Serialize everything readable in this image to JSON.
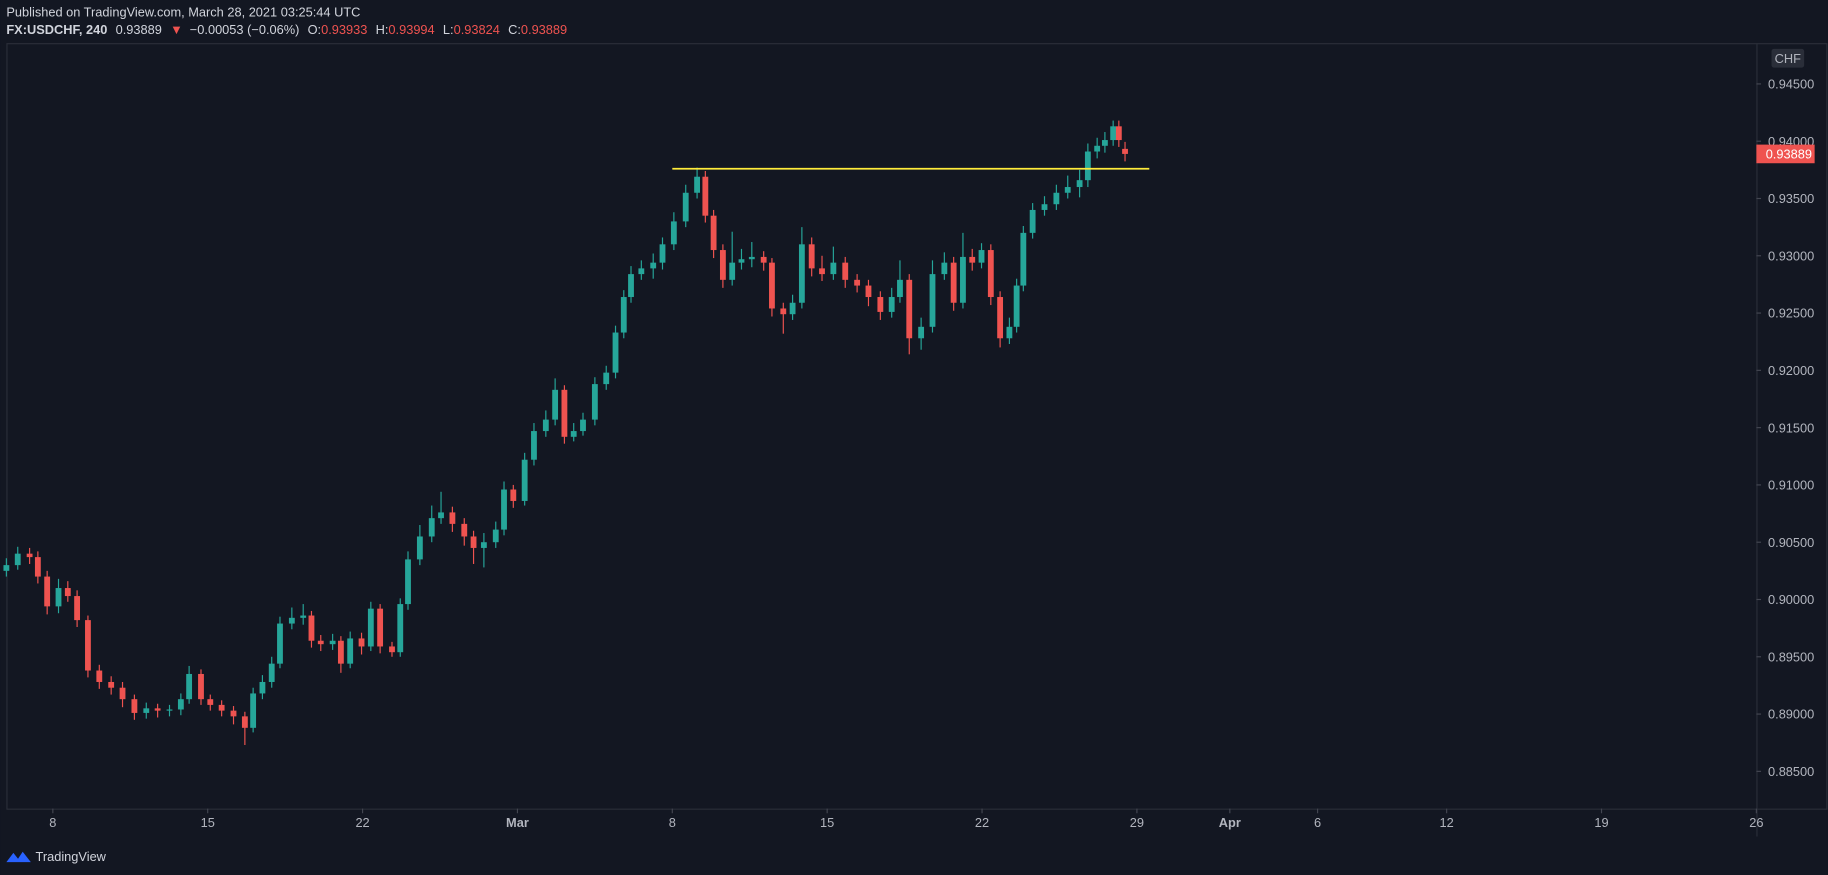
{
  "chart_data": {
    "type": "candlestick",
    "published": "Published on TradingView.com, March 28, 2021 03:25:44 UTC",
    "symbol": "FX:USDCHF, 240",
    "last": 0.93889,
    "change_arrow": "▼",
    "change": "−0.00053 (−0.06%)",
    "ohlc_labels": [
      "O:",
      "H:",
      "L:",
      "C:"
    ],
    "currency": "CHF",
    "brand": "TradingView",
    "up_color": "#26a69a",
    "down_color": "#ef5350",
    "ylim": [
      0.88175,
      0.94846
    ],
    "yticks": [
      {
        "value": 0.945,
        "label": "0.94500"
      },
      {
        "value": 0.94,
        "label": "0.94000"
      },
      {
        "value": 0.935,
        "label": "0.93500"
      },
      {
        "value": 0.93,
        "label": "0.93000"
      },
      {
        "value": 0.925,
        "label": "0.92500"
      },
      {
        "value": 0.92,
        "label": "0.92000"
      },
      {
        "value": 0.915,
        "label": "0.91500"
      },
      {
        "value": 0.91,
        "label": "0.91000"
      },
      {
        "value": 0.905,
        "label": "0.90500"
      },
      {
        "value": 0.9,
        "label": "0.90000"
      },
      {
        "value": 0.895,
        "label": "0.89500"
      },
      {
        "value": 0.89,
        "label": "0.89000"
      },
      {
        "value": 0.885,
        "label": "0.88500"
      }
    ],
    "xlim": [
      -9,
      330
    ],
    "xticks": [
      {
        "value": 0,
        "label": "8"
      },
      {
        "value": 30,
        "label": "15"
      },
      {
        "value": 60,
        "label": "22"
      },
      {
        "value": 90,
        "label": "Mar"
      },
      {
        "value": 120,
        "label": "8"
      },
      {
        "value": 150,
        "label": "15"
      },
      {
        "value": 180,
        "label": "22"
      },
      {
        "value": 210,
        "label": "29"
      },
      {
        "value": 228,
        "label": "Apr"
      },
      {
        "value": 245,
        "label": "6"
      },
      {
        "value": 270,
        "label": "12"
      },
      {
        "value": 300,
        "label": "19"
      },
      {
        "value": 330,
        "label": "26"
      }
    ],
    "hline": {
      "value": 0.9376,
      "x_start": 120,
      "x_end": 212.4,
      "color": "#ffeb3b"
    },
    "x": [
      -9.0,
      -6.8,
      -4.5,
      -2.9,
      -1.1,
      1.1,
      2.9,
      4.7,
      6.8,
      9.0,
      11.3,
      13.5,
      15.8,
      18.1,
      20.3,
      22.6,
      24.8,
      26.4,
      28.7,
      30.5,
      32.7,
      35.0,
      37.2,
      38.8,
      40.6,
      42.4,
      44.0,
      46.3,
      48.5,
      50.1,
      51.9,
      54.2,
      55.8,
      57.6,
      59.8,
      61.6,
      63.4,
      65.7,
      67.3,
      68.8,
      71.1,
      73.4,
      75.2,
      77.4,
      79.7,
      81.5,
      83.5,
      85.8,
      87.4,
      89.2,
      91.4,
      93.2,
      95.5,
      97.3,
      99.1,
      100.9,
      102.7,
      105.0,
      107.2,
      109.0,
      110.6,
      112.0,
      114.0,
      116.3,
      118.1,
      120.3,
      122.6,
      124.8,
      126.4,
      128.0,
      129.8,
      131.6,
      133.4,
      135.4,
      137.7,
      139.3,
      141.5,
      143.3,
      145.1,
      147.0,
      149.0,
      151.2,
      153.5,
      155.8,
      158.0,
      160.3,
      162.5,
      164.1,
      165.9,
      168.2,
      170.4,
      172.7,
      174.5,
      176.3,
      178.1,
      179.9,
      181.7,
      183.5,
      185.3,
      186.7,
      188.0,
      189.8,
      192.1,
      194.4,
      196.6,
      198.9,
      200.5,
      202.3,
      203.8,
      205.4,
      206.5,
      207.7
    ],
    "candles": [
      [
        0.9025,
        0.9036,
        0.902,
        0.903
      ],
      [
        0.903,
        0.9046,
        0.9026,
        0.904
      ],
      [
        0.904,
        0.9045,
        0.9031,
        0.9037
      ],
      [
        0.9037,
        0.9042,
        0.9014,
        0.902
      ],
      [
        0.902,
        0.9025,
        0.8987,
        0.8994
      ],
      [
        0.8994,
        0.9018,
        0.8988,
        0.901
      ],
      [
        0.901,
        0.9016,
        0.8998,
        0.9003
      ],
      [
        0.9003,
        0.9008,
        0.8976,
        0.8982
      ],
      [
        0.8982,
        0.8986,
        0.8932,
        0.8938
      ],
      [
        0.8938,
        0.8943,
        0.8922,
        0.8928
      ],
      [
        0.8928,
        0.8933,
        0.8917,
        0.8923
      ],
      [
        0.8923,
        0.8928,
        0.8906,
        0.8913
      ],
      [
        0.8913,
        0.8917,
        0.8895,
        0.8901
      ],
      [
        0.8901,
        0.891,
        0.8896,
        0.8905
      ],
      [
        0.8905,
        0.8909,
        0.8897,
        0.8903
      ],
      [
        0.8903,
        0.8908,
        0.8898,
        0.8904
      ],
      [
        0.8904,
        0.8918,
        0.8899,
        0.8913
      ],
      [
        0.8913,
        0.8942,
        0.8909,
        0.8935
      ],
      [
        0.8935,
        0.8939,
        0.8908,
        0.8913
      ],
      [
        0.8913,
        0.8917,
        0.8903,
        0.8908
      ],
      [
        0.8908,
        0.8912,
        0.8898,
        0.8903
      ],
      [
        0.8903,
        0.8907,
        0.8891,
        0.8898
      ],
      [
        0.8898,
        0.8902,
        0.8873,
        0.8888
      ],
      [
        0.8888,
        0.8923,
        0.8884,
        0.8918
      ],
      [
        0.8918,
        0.8934,
        0.8913,
        0.8928
      ],
      [
        0.8928,
        0.895,
        0.8923,
        0.8944
      ],
      [
        0.8944,
        0.8985,
        0.894,
        0.8979
      ],
      [
        0.8979,
        0.8993,
        0.8974,
        0.8984
      ],
      [
        0.8984,
        0.8996,
        0.8978,
        0.8986
      ],
      [
        0.8986,
        0.899,
        0.8958,
        0.8964
      ],
      [
        0.8964,
        0.8969,
        0.8955,
        0.8961
      ],
      [
        0.8961,
        0.897,
        0.8956,
        0.8964
      ],
      [
        0.8964,
        0.8968,
        0.8936,
        0.8944
      ],
      [
        0.8944,
        0.8972,
        0.894,
        0.8966
      ],
      [
        0.8966,
        0.8971,
        0.8952,
        0.8959
      ],
      [
        0.8959,
        0.8998,
        0.8955,
        0.8992
      ],
      [
        0.8992,
        0.8996,
        0.8953,
        0.8959
      ],
      [
        0.8959,
        0.8963,
        0.895,
        0.8954
      ],
      [
        0.8954,
        0.9001,
        0.895,
        0.8996
      ],
      [
        0.8996,
        0.9042,
        0.8991,
        0.9035
      ],
      [
        0.9035,
        0.9065,
        0.903,
        0.9055
      ],
      [
        0.9055,
        0.9082,
        0.905,
        0.9071
      ],
      [
        0.9071,
        0.9094,
        0.9066,
        0.9076
      ],
      [
        0.9076,
        0.9081,
        0.9059,
        0.9066
      ],
      [
        0.9066,
        0.9071,
        0.9047,
        0.9055
      ],
      [
        0.9055,
        0.906,
        0.9031,
        0.9045
      ],
      [
        0.9045,
        0.9058,
        0.9028,
        0.905
      ],
      [
        0.905,
        0.9068,
        0.9045,
        0.9061
      ],
      [
        0.9061,
        0.9103,
        0.9056,
        0.9096
      ],
      [
        0.9096,
        0.91,
        0.908,
        0.9086
      ],
      [
        0.9086,
        0.9128,
        0.9082,
        0.9122
      ],
      [
        0.9122,
        0.9154,
        0.9117,
        0.9147
      ],
      [
        0.9147,
        0.9165,
        0.9142,
        0.9157
      ],
      [
        0.9157,
        0.9193,
        0.9152,
        0.9183
      ],
      [
        0.9183,
        0.9187,
        0.9136,
        0.9142
      ],
      [
        0.9142,
        0.9154,
        0.9138,
        0.9147
      ],
      [
        0.9147,
        0.9163,
        0.9143,
        0.9157
      ],
      [
        0.9157,
        0.9194,
        0.9152,
        0.9188
      ],
      [
        0.9188,
        0.9204,
        0.9183,
        0.9198
      ],
      [
        0.9198,
        0.9239,
        0.9193,
        0.9233
      ],
      [
        0.9233,
        0.927,
        0.9228,
        0.9264
      ],
      [
        0.9264,
        0.9291,
        0.9259,
        0.9284
      ],
      [
        0.9284,
        0.9296,
        0.9279,
        0.9289
      ],
      [
        0.9289,
        0.9302,
        0.928,
        0.9294
      ],
      [
        0.9294,
        0.9316,
        0.9288,
        0.931
      ],
      [
        0.931,
        0.9338,
        0.9305,
        0.933
      ],
      [
        0.933,
        0.9362,
        0.9325,
        0.9355
      ],
      [
        0.9355,
        0.9377,
        0.935,
        0.9369
      ],
      [
        0.9369,
        0.9374,
        0.9329,
        0.9335
      ],
      [
        0.9335,
        0.934,
        0.9298,
        0.9305
      ],
      [
        0.9305,
        0.931,
        0.9272,
        0.9279
      ],
      [
        0.9279,
        0.9321,
        0.9274,
        0.9294
      ],
      [
        0.9294,
        0.9306,
        0.9288,
        0.9297
      ],
      [
        0.9297,
        0.9312,
        0.929,
        0.9299
      ],
      [
        0.9299,
        0.9304,
        0.9287,
        0.9294
      ],
      [
        0.9294,
        0.9298,
        0.9247,
        0.9254
      ],
      [
        0.9254,
        0.9259,
        0.9232,
        0.9249
      ],
      [
        0.9249,
        0.9266,
        0.9244,
        0.9259
      ],
      [
        0.9259,
        0.9325,
        0.9254,
        0.931
      ],
      [
        0.931,
        0.9316,
        0.9282,
        0.9289
      ],
      [
        0.9289,
        0.93,
        0.9278,
        0.9284
      ],
      [
        0.9284,
        0.9308,
        0.9279,
        0.9294
      ],
      [
        0.9294,
        0.9299,
        0.9272,
        0.9279
      ],
      [
        0.9279,
        0.9284,
        0.9268,
        0.9274
      ],
      [
        0.9274,
        0.9279,
        0.9256,
        0.9264
      ],
      [
        0.9264,
        0.9269,
        0.9244,
        0.9251
      ],
      [
        0.9251,
        0.9272,
        0.9246,
        0.9264
      ],
      [
        0.9264,
        0.9296,
        0.9259,
        0.9279
      ],
      [
        0.9279,
        0.9284,
        0.9214,
        0.9228
      ],
      [
        0.9228,
        0.9246,
        0.9218,
        0.9238
      ],
      [
        0.9238,
        0.9296,
        0.9233,
        0.9284
      ],
      [
        0.9284,
        0.9303,
        0.9279,
        0.9294
      ],
      [
        0.9294,
        0.9299,
        0.9252,
        0.9259
      ],
      [
        0.9259,
        0.932,
        0.9254,
        0.9299
      ],
      [
        0.9299,
        0.9306,
        0.9287,
        0.9294
      ],
      [
        0.9294,
        0.9311,
        0.9289,
        0.9305
      ],
      [
        0.9305,
        0.931,
        0.9257,
        0.9264
      ],
      [
        0.9264,
        0.9269,
        0.922,
        0.9228
      ],
      [
        0.9228,
        0.9246,
        0.9223,
        0.9238
      ],
      [
        0.9238,
        0.928,
        0.9233,
        0.9274
      ],
      [
        0.9274,
        0.9326,
        0.9269,
        0.932
      ],
      [
        0.932,
        0.9346,
        0.9315,
        0.934
      ],
      [
        0.934,
        0.9352,
        0.9335,
        0.9345
      ],
      [
        0.9345,
        0.9362,
        0.934,
        0.9355
      ],
      [
        0.9355,
        0.937,
        0.935,
        0.936
      ],
      [
        0.936,
        0.9375,
        0.9351,
        0.9366
      ],
      [
        0.9366,
        0.9398,
        0.936,
        0.9391
      ],
      [
        0.9391,
        0.9403,
        0.9385,
        0.9396
      ],
      [
        0.9396,
        0.9408,
        0.939,
        0.9401
      ],
      [
        0.9401,
        0.9418,
        0.9396,
        0.9413
      ],
      [
        0.9413,
        0.9418,
        0.9395,
        0.9401
      ],
      [
        0.93933,
        0.93994,
        0.93824,
        0.93889
      ]
    ]
  }
}
